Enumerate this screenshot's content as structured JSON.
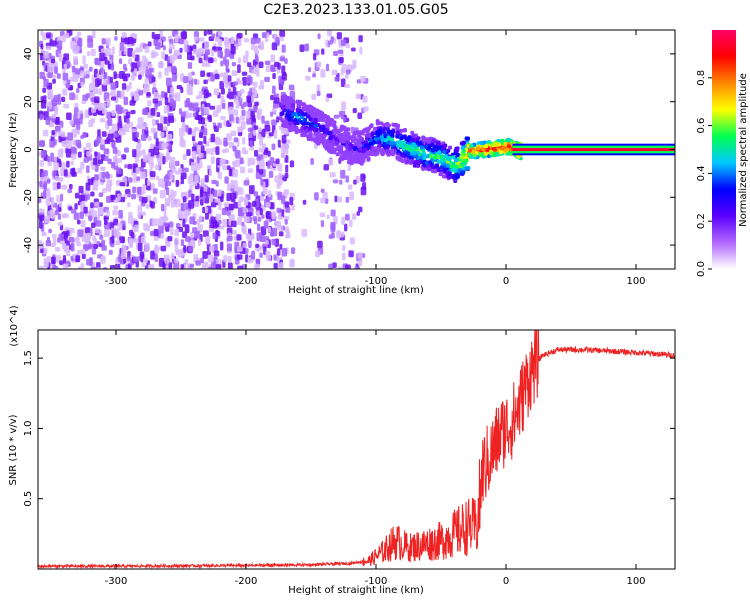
{
  "title": "C2E3.2023.133.01.05.G05",
  "chart_data": [
    {
      "type": "heatmap",
      "title": "C2E3.2023.133.01.05.G05",
      "xlabel": "Height of straight line (km)",
      "ylabel": "Frequency (Hz)",
      "xlim": [
        -360,
        130
      ],
      "ylim": [
        -50,
        50
      ],
      "xticks": [
        -300,
        -200,
        -100,
        0,
        100
      ],
      "yticks": [
        -40,
        -20,
        0,
        20,
        40
      ],
      "colorbar": {
        "label": "Normalized spectral amplitude",
        "range": [
          0,
          1
        ],
        "ticks": [
          "0.0",
          "0.2",
          "0.4",
          "0.6",
          "0.8"
        ],
        "colormap": [
          "#ffffff",
          "#b066ff",
          "#5a00ff",
          "#0000ff",
          "#00c8ff",
          "#00ff50",
          "#ffff00",
          "#ff8800",
          "#ff0000",
          "#ff0066"
        ]
      },
      "ridge": {
        "x": [
          -175,
          -160,
          -145,
          -130,
          -115,
          -100,
          -85,
          -70,
          -55,
          -40,
          -30,
          -15,
          0,
          10,
          130
        ],
        "y": [
          17,
          14,
          10,
          4,
          1,
          6,
          4,
          0,
          -2,
          -6,
          0,
          1,
          2,
          0,
          0
        ],
        "amplitude": [
          0.3,
          0.45,
          0.3,
          0.25,
          0.25,
          0.45,
          0.5,
          0.55,
          0.55,
          0.6,
          0.8,
          0.9,
          0.9,
          1.0,
          1.0
        ]
      },
      "noise_extent_x": [
        -360,
        -110
      ]
    },
    {
      "type": "line",
      "xlabel": "Height of straight line (km)",
      "ylabel": "SNR (10 * v/v)",
      "scale_label": "(x10^4)",
      "xlim": [
        -360,
        130
      ],
      "ylim": [
        0,
        1.7
      ],
      "xticks": [
        -300,
        -200,
        -100,
        0,
        100
      ],
      "yticks": [
        0.5,
        1.0,
        1.5
      ],
      "ytick_labels": [
        "0.5",
        "1.0",
        "1.5"
      ],
      "color": "#ee2222",
      "series": [
        {
          "x": [
            -360,
            -300,
            -200,
            -150,
            -120,
            -105,
            -95,
            -85,
            -75,
            -60,
            -50,
            -40,
            -30,
            -22,
            -18,
            -12,
            -5,
            0,
            5,
            10,
            15,
            20,
            28,
            40,
            60,
            80,
            100,
            130
          ],
          "y": [
            0.02,
            0.02,
            0.025,
            0.03,
            0.04,
            0.06,
            0.12,
            0.2,
            0.15,
            0.18,
            0.2,
            0.25,
            0.3,
            0.3,
            0.7,
            0.8,
            0.95,
            1.0,
            1.05,
            1.15,
            1.3,
            1.42,
            1.52,
            1.56,
            1.56,
            1.55,
            1.54,
            1.52
          ]
        }
      ]
    }
  ]
}
